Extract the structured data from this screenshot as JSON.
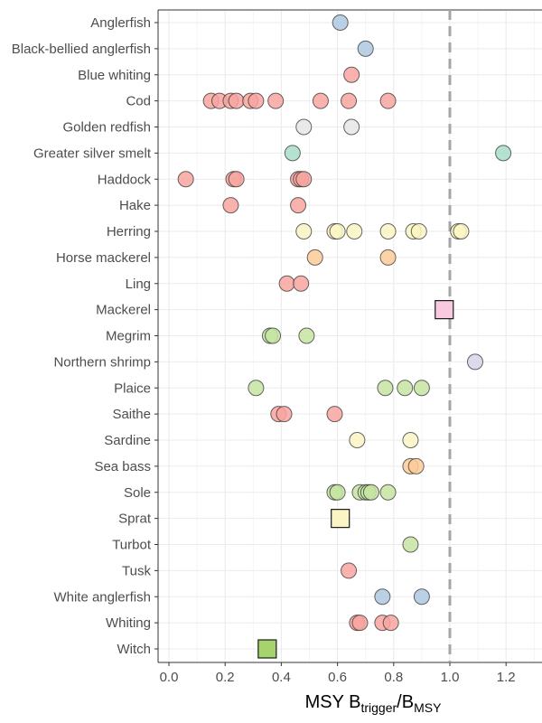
{
  "chart_data": {
    "type": "scatter",
    "xlabel": {
      "main": "MSY B",
      "sub1": "trigger",
      "slash": "/B",
      "sub2": "MSY"
    },
    "xlim": [
      -0.09,
      1.33
    ],
    "xticks": [
      0.0,
      0.2,
      0.4,
      0.6,
      0.8,
      1.0,
      1.2
    ],
    "xtick_labels": [
      "0.0",
      "0.2",
      "0.4",
      "0.6",
      "0.8",
      "1.0",
      "1.2"
    ],
    "reference_line": {
      "x": 1.0,
      "style": "dashed",
      "color": "#a6a6a6"
    },
    "grid": true,
    "categories": [
      "Anglerfish",
      "Black-bellied anglerfish",
      "Blue whiting",
      "Cod",
      "Golden redfish",
      "Greater silver smelt",
      "Haddock",
      "Hake",
      "Herring",
      "Horse mackerel",
      "Ling",
      "Mackerel",
      "Megrim",
      "Northern shrimp",
      "Plaice",
      "Saithe",
      "Sardine",
      "Sea bass",
      "Sole",
      "Sprat",
      "Turbot",
      "Tusk",
      "White anglerfish",
      "Whiting",
      "Witch"
    ],
    "series": [
      {
        "name": "Anglerfish",
        "color": "#aec8e0",
        "shape": "circle",
        "values": [
          0.61
        ]
      },
      {
        "name": "Black-bellied anglerfish",
        "color": "#aec8e0",
        "shape": "circle",
        "values": [
          0.7
        ]
      },
      {
        "name": "Blue whiting",
        "color": "#f8a5a0",
        "shape": "circle",
        "values": [
          0.65
        ]
      },
      {
        "name": "Cod",
        "color": "#f8a5a0",
        "shape": "circle",
        "values": [
          0.15,
          0.18,
          0.22,
          0.24,
          0.29,
          0.31,
          0.38,
          0.54,
          0.64,
          0.78
        ]
      },
      {
        "name": "Golden redfish",
        "color": "#e6e6e6",
        "shape": "circle",
        "values": [
          0.48,
          0.65
        ]
      },
      {
        "name": "Greater silver smelt",
        "color": "#a8ddc9",
        "shape": "circle",
        "values": [
          0.44,
          1.19
        ]
      },
      {
        "name": "Haddock",
        "color": "#f8a5a0",
        "shape": "circle",
        "values": [
          0.06,
          0.23,
          0.24,
          0.46,
          0.47,
          0.48
        ]
      },
      {
        "name": "Hake",
        "color": "#f8a5a0",
        "shape": "circle",
        "values": [
          0.22,
          0.46
        ]
      },
      {
        "name": "Herring",
        "color": "#fbf5c4",
        "shape": "circle",
        "values": [
          0.48,
          0.59,
          0.6,
          0.66,
          0.78,
          0.87,
          0.89,
          1.03,
          1.04
        ]
      },
      {
        "name": "Horse mackerel",
        "color": "#fbcb98",
        "shape": "circle",
        "values": [
          0.52,
          0.78
        ]
      },
      {
        "name": "Ling",
        "color": "#f8a5a0",
        "shape": "circle",
        "values": [
          0.42,
          0.47
        ]
      },
      {
        "name": "Mackerel",
        "color": "#f9c9df",
        "shape": "square",
        "values": [
          0.98
        ]
      },
      {
        "name": "Megrim",
        "color": "#c6e4a2",
        "shape": "circle",
        "values": [
          0.36,
          0.37,
          0.49
        ]
      },
      {
        "name": "Northern shrimp",
        "color": "#d6d3ea",
        "shape": "circle",
        "values": [
          1.09
        ]
      },
      {
        "name": "Plaice",
        "color": "#c6e4a2",
        "shape": "circle",
        "values": [
          0.31,
          0.77,
          0.84,
          0.9
        ]
      },
      {
        "name": "Saithe",
        "color": "#f8a5a0",
        "shape": "circle",
        "values": [
          0.39,
          0.41,
          0.59
        ]
      },
      {
        "name": "Sardine",
        "color": "#fbf5c4",
        "shape": "circle",
        "values": [
          0.67,
          0.86
        ]
      },
      {
        "name": "Sea bass",
        "color": "#fbcb98",
        "shape": "circle",
        "values": [
          0.86,
          0.88
        ]
      },
      {
        "name": "Sole",
        "color": "#c6e4a2",
        "shape": "circle",
        "values": [
          0.59,
          0.6,
          0.68,
          0.7,
          0.71,
          0.72,
          0.78
        ]
      },
      {
        "name": "Sprat",
        "color": "#fbf5c4",
        "shape": "square",
        "values": [
          0.61
        ]
      },
      {
        "name": "Turbot",
        "color": "#c6e4a2",
        "shape": "circle",
        "values": [
          0.86
        ]
      },
      {
        "name": "Tusk",
        "color": "#f8a5a0",
        "shape": "circle",
        "values": [
          0.64
        ]
      },
      {
        "name": "White anglerfish",
        "color": "#aec8e0",
        "shape": "circle",
        "values": [
          0.76,
          0.9
        ]
      },
      {
        "name": "Whiting",
        "color": "#f8a5a0",
        "shape": "circle",
        "values": [
          0.67,
          0.68,
          0.76,
          0.79
        ]
      },
      {
        "name": "Witch",
        "color": "#a6d36b",
        "shape": "square",
        "values": [
          0.35
        ]
      }
    ]
  }
}
